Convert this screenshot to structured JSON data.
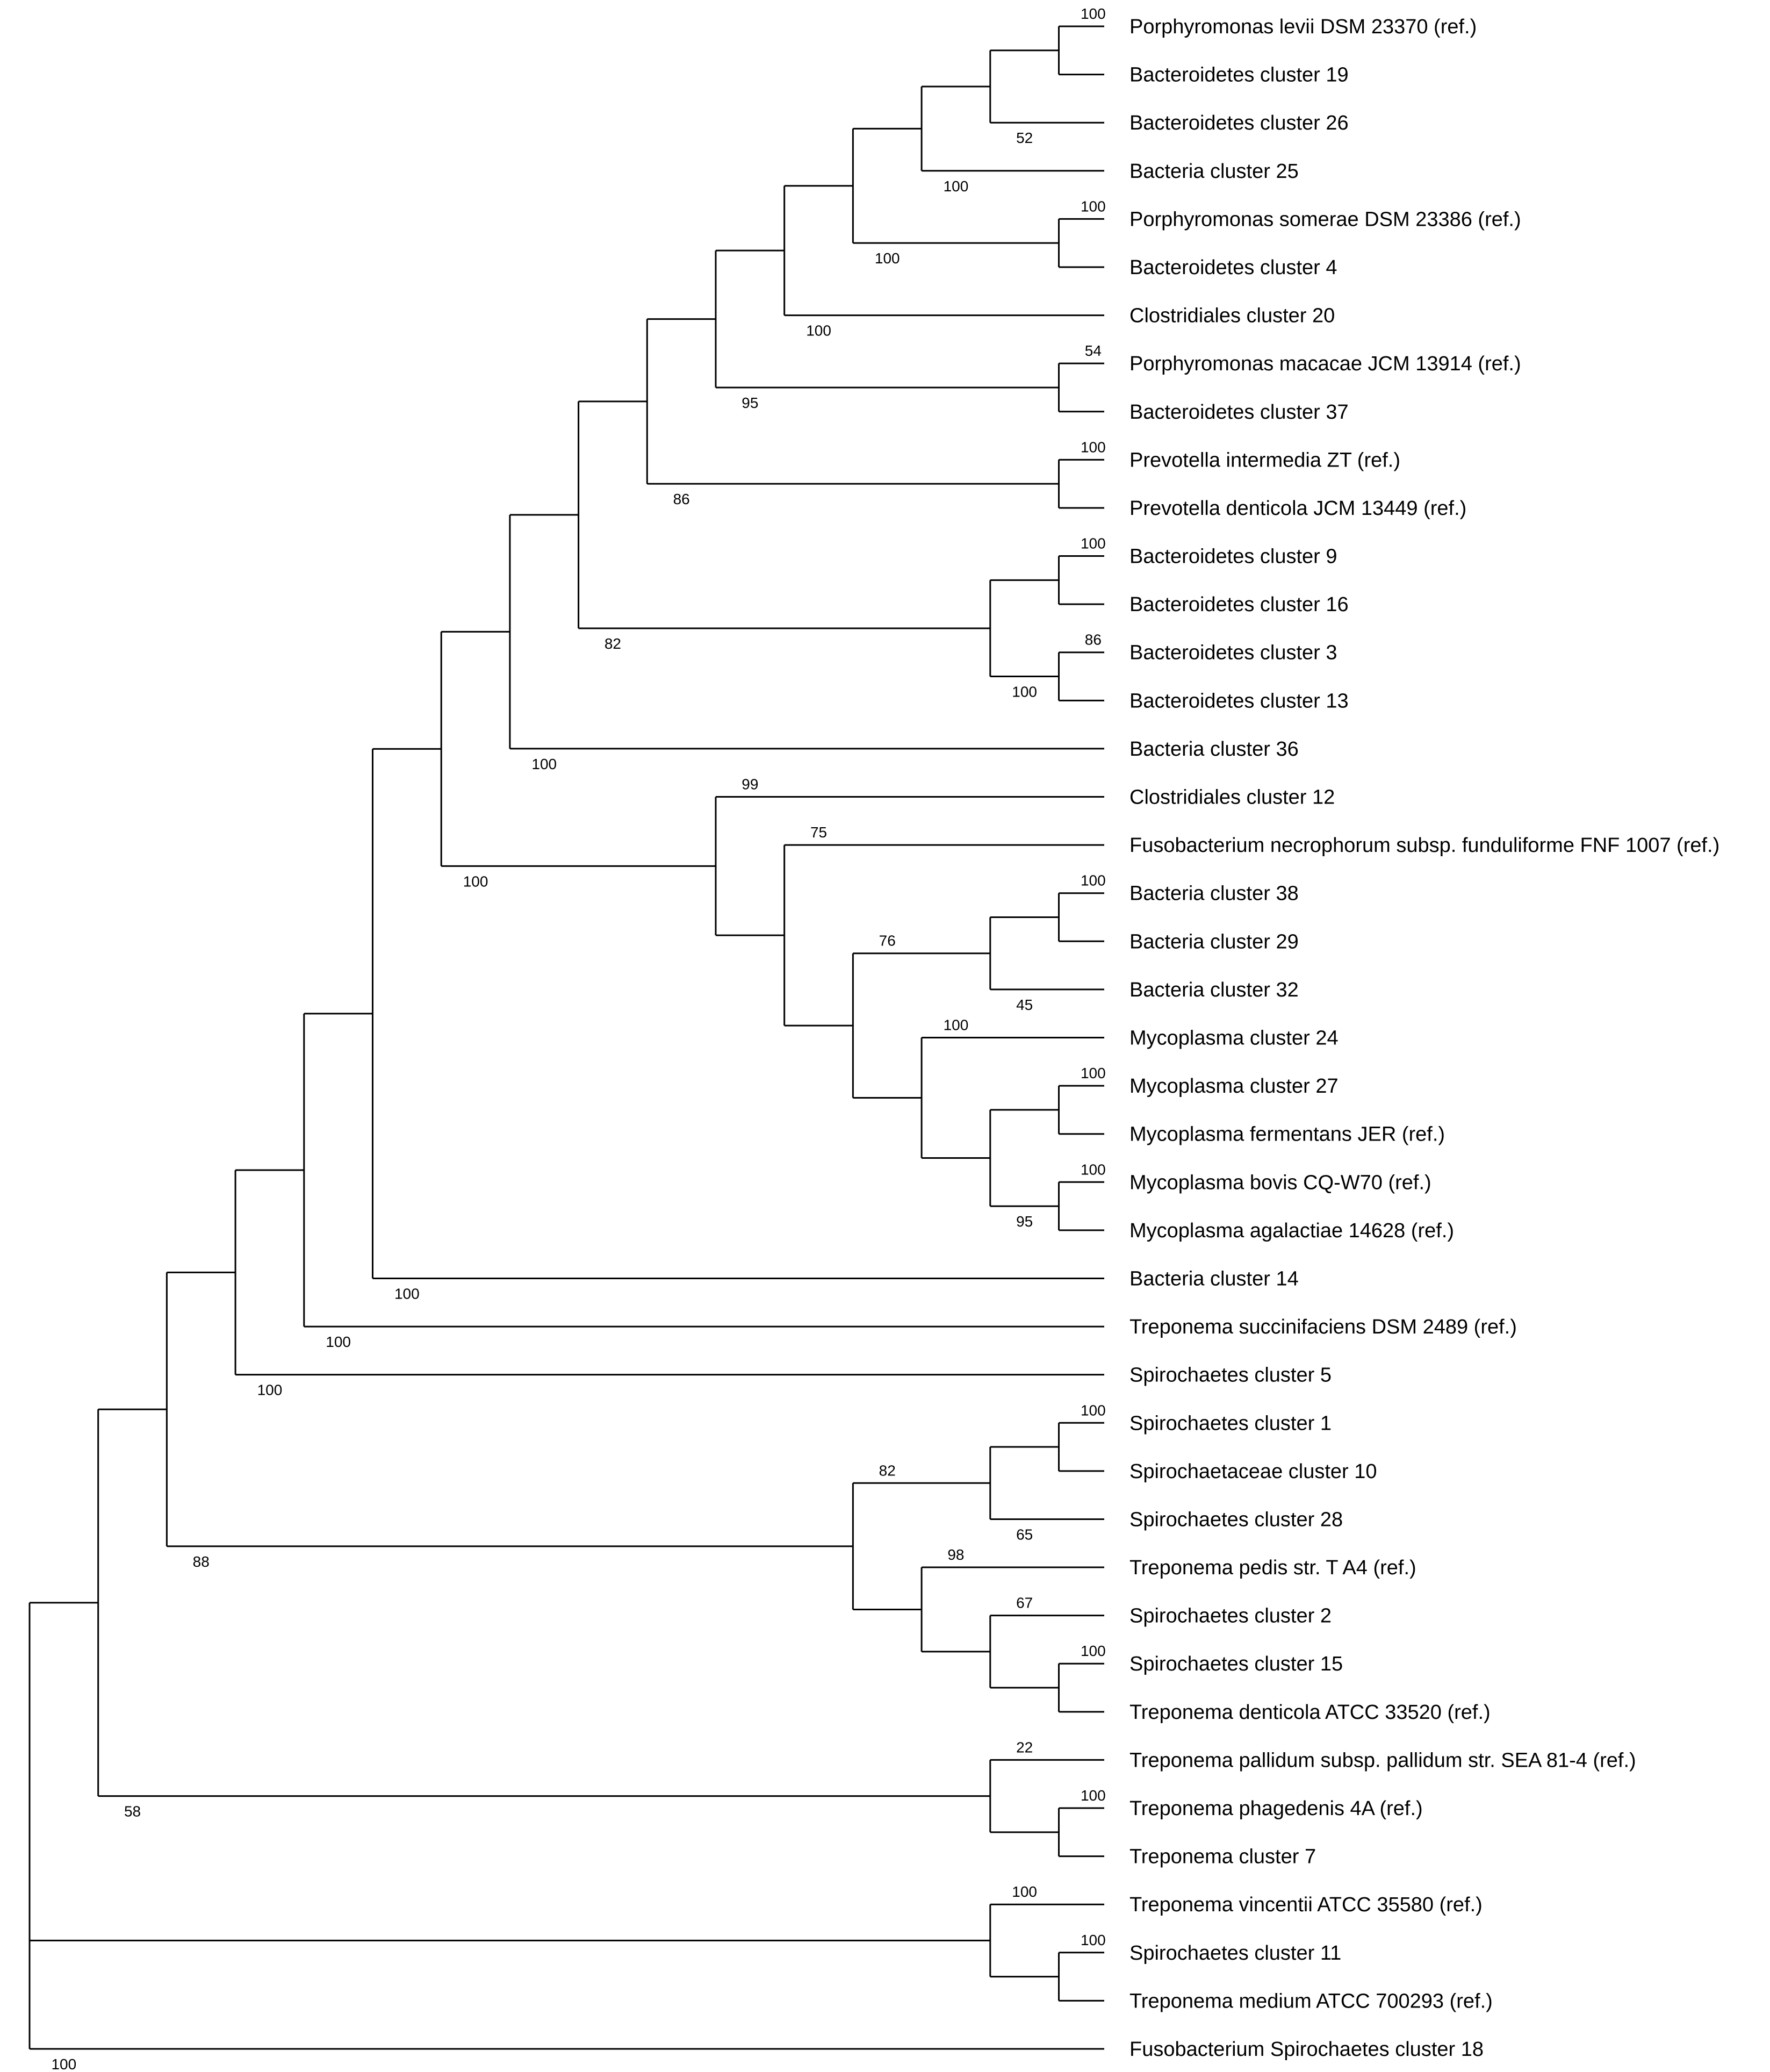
{
  "figure": {
    "type": "phylogenetic-tree",
    "line_color": "#000000",
    "background": "#ffffff"
  },
  "taxa": [
    "Porphyromonas levii DSM 23370 (ref.)",
    "Bacteroidetes cluster 19",
    "Bacteroidetes cluster 26",
    "Bacteria cluster 25",
    "Porphyromonas somerae DSM 23386 (ref.)",
    "Bacteroidetes cluster 4",
    "Clostridiales cluster 20",
    "Porphyromonas macacae JCM 13914 (ref.)",
    "Bacteroidetes cluster 37",
    "Prevotella intermedia ZT (ref.)",
    "Prevotella denticola JCM 13449 (ref.)",
    "Bacteroidetes cluster 9",
    "Bacteroidetes cluster 16",
    "Bacteroidetes cluster 3",
    "Bacteroidetes cluster 13",
    "Bacteria cluster 36",
    "Clostridiales cluster 12",
    "Fusobacterium necrophorum subsp. funduliforme FNF 1007 (ref.)",
    "Bacteria cluster 38",
    "Bacteria cluster 29",
    "Bacteria cluster 32",
    "Mycoplasma cluster 24",
    "Mycoplasma cluster 27",
    "Mycoplasma fermentans JER (ref.)",
    "Mycoplasma bovis CQ-W70 (ref.)",
    "Mycoplasma agalactiae 14628 (ref.)",
    "Bacteria cluster 14",
    "Treponema succinifaciens DSM 2489 (ref.)",
    "Spirochaetes cluster 5",
    "Spirochaetes cluster 1",
    "Spirochaetaceae cluster 10",
    "Spirochaetes cluster 28",
    "Treponema pedis str. T A4 (ref.)",
    "Spirochaetes cluster 2",
    "Spirochaetes cluster 15",
    "Treponema denticola ATCC 33520 (ref.)",
    "Treponema pallidum subsp. pallidum str. SEA 81-4 (ref.)",
    "Treponema phagedenis 4A (ref.)",
    "Treponema cluster 7",
    "Treponema vincentii ATCC 35580 (ref.)",
    "Spirochaetes cluster 11",
    "Treponema medium ATCC 700293 (ref.)",
    "Fusobacterium Spirochaetes cluster 18"
  ],
  "tree": {
    "support": "100",
    "children": [
      {
        "support": "58",
        "children": [
          {
            "support": "88",
            "children": [
              {
                "support": "100",
                "children": [
                  {
                    "support": "100",
                    "children": [
                      {
                        "support": "100",
                        "children": [
                          {
                            "support": "100",
                            "children": [
                              {
                                "support": "100",
                                "children": [
                                  {
                                    "support": "82",
                                    "children": [
                                      {
                                        "support": "86",
                                        "children": [
                                          {
                                            "support": "95",
                                            "children": [
                                              {
                                                "support": "100",
                                                "children": [
                                                  {
                                                    "support": "100",
                                                    "children": [
                                                      {
                                                        "support": "100",
                                                        "children": [
                                                          {
                                                            "support": "52",
                                                            "children": [
                                                              {
                                                                "support": "100",
                                                                "children": [
                                                                  {
                                                                    "leaf": 0
                                                                  },
                                                                  {
                                                                    "leaf": 1
                                                                  }
                                                                ]
                                                              },
                                                              {
                                                                "leaf": 2
                                                              }
                                                            ]
                                                          },
                                                          {
                                                            "leaf": 3
                                                          }
                                                        ]
                                                      },
                                                      {
                                                        "support": "100",
                                                        "children": [
                                                          {
                                                            "leaf": 4
                                                          },
                                                          {
                                                            "leaf": 5
                                                          }
                                                        ]
                                                      }
                                                    ]
                                                  },
                                                  {
                                                    "leaf": 6
                                                  }
                                                ]
                                              },
                                              {
                                                "support": "54",
                                                "children": [
                                                  {
                                                    "leaf": 7
                                                  },
                                                  {
                                                    "leaf": 8
                                                  }
                                                ]
                                              }
                                            ]
                                          },
                                          {
                                            "support": "100",
                                            "children": [
                                              {
                                                "leaf": 9
                                              },
                                              {
                                                "leaf": 10
                                              }
                                            ]
                                          }
                                        ]
                                      },
                                      {
                                        "support": "100",
                                        "children": [
                                          {
                                            "support": "100",
                                            "children": [
                                              {
                                                "leaf": 11
                                              },
                                              {
                                                "leaf": 12
                                              }
                                            ]
                                          },
                                          {
                                            "support": "86",
                                            "children": [
                                              {
                                                "leaf": 13
                                              },
                                              {
                                                "leaf": 14
                                              }
                                            ]
                                          }
                                        ]
                                      }
                                    ]
                                  },
                                  {
                                    "leaf": 15
                                  }
                                ]
                              },
                              {
                                "support": "99",
                                "children": [
                                  {
                                    "leaf": 16
                                  },
                                  {
                                    "support": "75",
                                    "children": [
                                      {
                                        "leaf": 17
                                      },
                                      {
                                        "support": "76",
                                        "children": [
                                          {
                                            "support": "45",
                                            "children": [
                                              {
                                                "support": "100",
                                                "children": [
                                                  {
                                                    "leaf": 18
                                                  },
                                                  {
                                                    "leaf": 19
                                                  }
                                                ]
                                              },
                                              {
                                                "leaf": 20
                                              }
                                            ]
                                          },
                                          {
                                            "support": "100",
                                            "children": [
                                              {
                                                "leaf": 21
                                              },
                                              {
                                                "support": "95",
                                                "children": [
                                                  {
                                                    "support": "100",
                                                    "children": [
                                                      {
                                                        "leaf": 22
                                                      },
                                                      {
                                                        "leaf": 23
                                                      }
                                                    ]
                                                  },
                                                  {
                                                    "support": "100",
                                                    "children": [
                                                      {
                                                        "leaf": 24
                                                      },
                                                      {
                                                        "leaf": 25
                                                      }
                                                    ]
                                                  }
                                                ]
                                              }
                                            ]
                                          }
                                        ]
                                      }
                                    ]
                                  }
                                ]
                              }
                            ]
                          },
                          {
                            "leaf": 26
                          }
                        ]
                      },
                      {
                        "leaf": 27
                      }
                    ]
                  },
                  {
                    "leaf": 28
                  }
                ]
              },
              {
                "support": "82",
                "children": [
                  {
                    "support": "65",
                    "children": [
                      {
                        "support": "100",
                        "children": [
                          {
                            "leaf": 29
                          },
                          {
                            "leaf": 30
                          }
                        ]
                      },
                      {
                        "leaf": 31
                      }
                    ]
                  },
                  {
                    "support": "98",
                    "children": [
                      {
                        "leaf": 32
                      },
                      {
                        "support": "67",
                        "children": [
                          {
                            "leaf": 33
                          },
                          {
                            "support": "100",
                            "children": [
                              {
                                "leaf": 34
                              },
                              {
                                "leaf": 35
                              }
                            ]
                          }
                        ]
                      }
                    ]
                  }
                ]
              }
            ]
          },
          {
            "support": "22",
            "children": [
              {
                "leaf": 36
              },
              {
                "support": "100",
                "children": [
                  {
                    "leaf": 37
                  },
                  {
                    "leaf": 38
                  }
                ]
              }
            ]
          }
        ]
      },
      {
        "support": "100",
        "children": [
          {
            "leaf": 39
          },
          {
            "support": "100",
            "children": [
              {
                "leaf": 40
              },
              {
                "leaf": 41
              }
            ]
          }
        ]
      },
      {
        "leaf": 42
      }
    ]
  }
}
